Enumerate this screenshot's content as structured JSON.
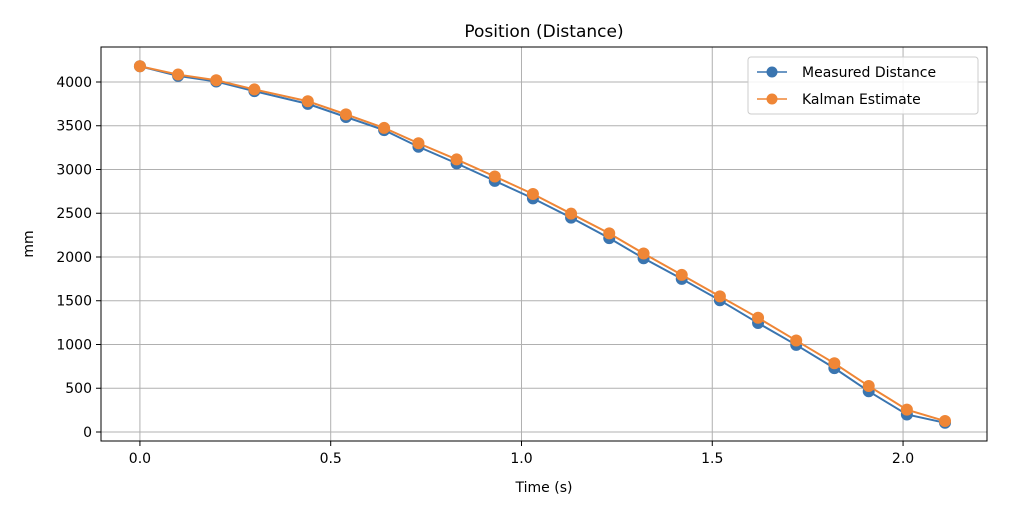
{
  "chart_data": {
    "type": "line",
    "title": "Position (Distance)",
    "xlabel": "Time (s)",
    "ylabel": "mm",
    "xlim": [
      -0.102,
      2.22
    ],
    "ylim": [
      -103,
      4400
    ],
    "grid": true,
    "legend_position": "top-right",
    "xticks": [
      0.0,
      0.5,
      1.0,
      1.5,
      2.0
    ],
    "xtick_labels": [
      "0.0",
      "0.5",
      "1.0",
      "1.5",
      "2.0"
    ],
    "yticks": [
      0,
      500,
      1000,
      1500,
      2000,
      2500,
      3000,
      3500,
      4000
    ],
    "ytick_labels": [
      "0",
      "500",
      "1000",
      "1500",
      "2000",
      "2500",
      "3000",
      "3500",
      "4000"
    ],
    "x": [
      0,
      0.1,
      0.2,
      0.3,
      0.44,
      0.54,
      0.64,
      0.73,
      0.83,
      0.93,
      1.03,
      1.13,
      1.23,
      1.32,
      1.42,
      1.52,
      1.62,
      1.72,
      1.82,
      1.91,
      2.01,
      2.11
    ],
    "series": [
      {
        "name": "Measured Distance",
        "color": "#3a75b0",
        "values": [
          4180,
          4070,
          4005,
          3895,
          3750,
          3600,
          3450,
          3260,
          3070,
          2870,
          2670,
          2450,
          2215,
          1985,
          1750,
          1505,
          1245,
          995,
          730,
          465,
          200,
          105
        ]
      },
      {
        "name": "Kalman Estimate",
        "color": "#ef8636",
        "values": [
          4180,
          4085,
          4020,
          3915,
          3780,
          3630,
          3475,
          3300,
          3115,
          2920,
          2720,
          2495,
          2270,
          2040,
          1795,
          1550,
          1305,
          1045,
          785,
          525,
          255,
          125
        ]
      }
    ]
  }
}
